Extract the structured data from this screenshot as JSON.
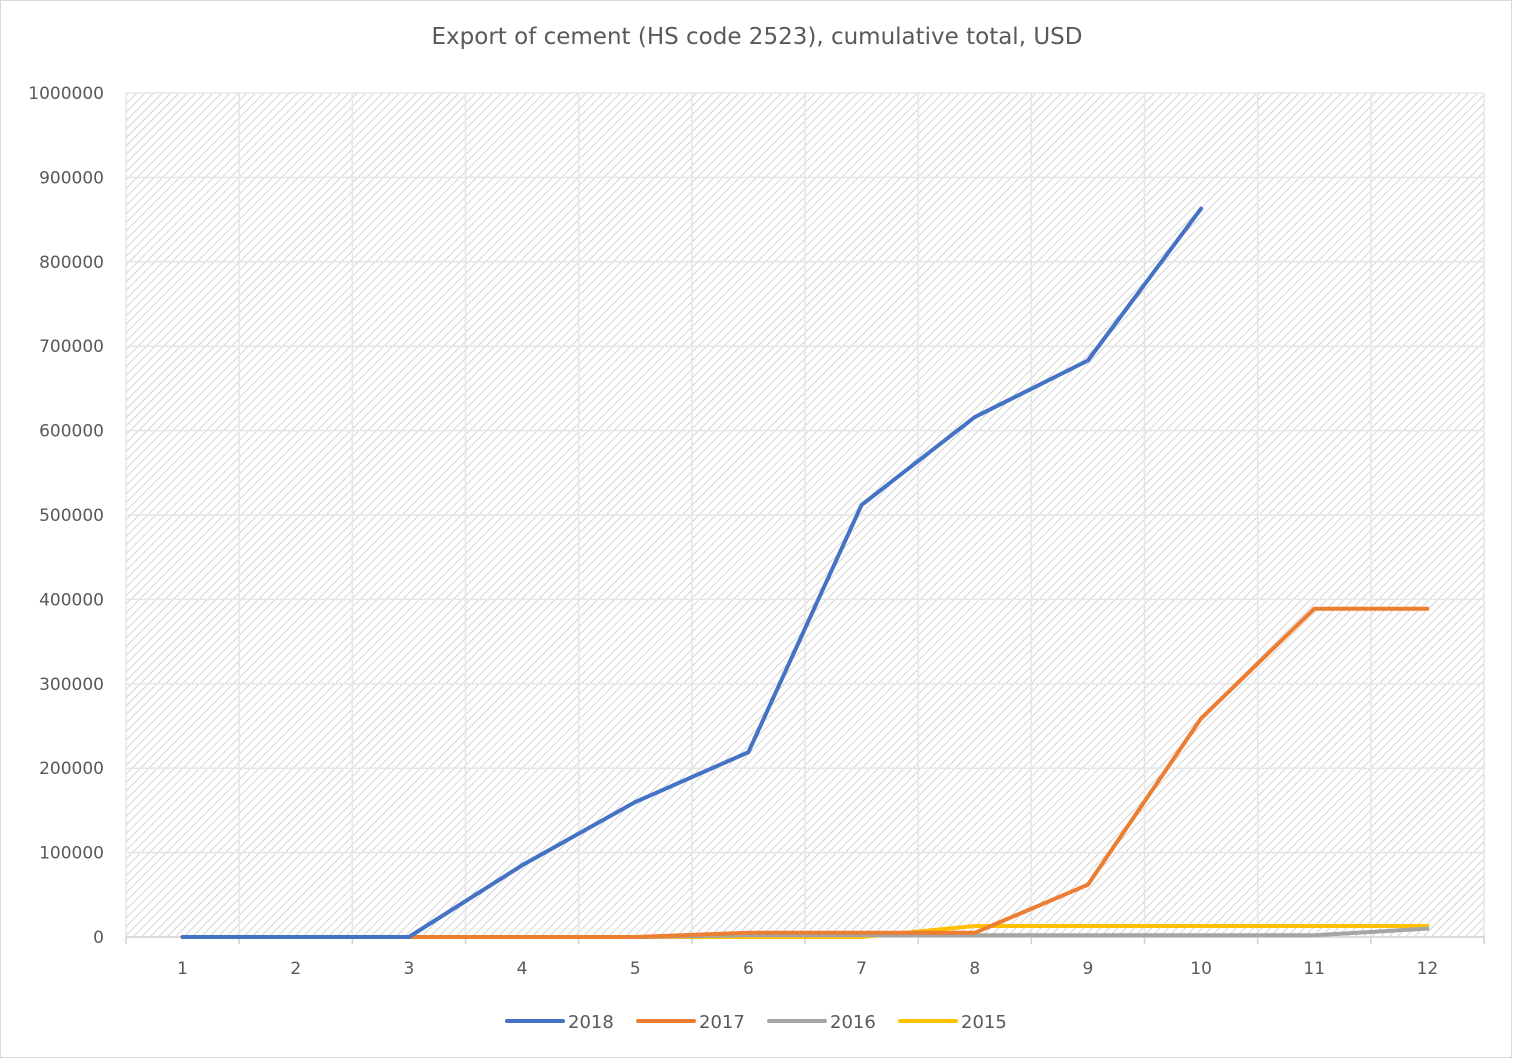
{
  "chart_data": {
    "type": "line",
    "title": "Export of cement (HS code 2523), cumulative total, USD",
    "xlabel": "",
    "ylabel": "",
    "categories": [
      "1",
      "2",
      "3",
      "4",
      "5",
      "6",
      "7",
      "8",
      "9",
      "10",
      "11",
      "12"
    ],
    "ylim": [
      0,
      1000000
    ],
    "yticks": [
      0,
      100000,
      200000,
      300000,
      400000,
      500000,
      600000,
      700000,
      800000,
      900000,
      1000000
    ],
    "ytick_labels": [
      "0",
      "100000",
      "200000",
      "300000",
      "400000",
      "500000",
      "600000",
      "700000",
      "800000",
      "900000",
      "1000000"
    ],
    "grid": true,
    "legend_position": "bottom",
    "series": [
      {
        "name": "2018",
        "color": "#4472c4",
        "values": [
          0,
          0,
          0,
          85000,
          160000,
          219000,
          512000,
          616000,
          683000,
          863000,
          null,
          null
        ]
      },
      {
        "name": "2017",
        "color": "#ed7d31",
        "values": [
          0,
          0,
          0,
          0,
          0,
          5000,
          5000,
          5000,
          62000,
          259000,
          389000,
          389000
        ]
      },
      {
        "name": "2016",
        "color": "#a5a5a5",
        "values": [
          0,
          0,
          0,
          0,
          0,
          2000,
          2000,
          2000,
          2000,
          2000,
          2000,
          10000
        ]
      },
      {
        "name": "2015",
        "color": "#ffc000",
        "values": [
          0,
          0,
          0,
          0,
          0,
          0,
          0,
          13000,
          13000,
          13000,
          13000,
          13000
        ]
      }
    ]
  }
}
